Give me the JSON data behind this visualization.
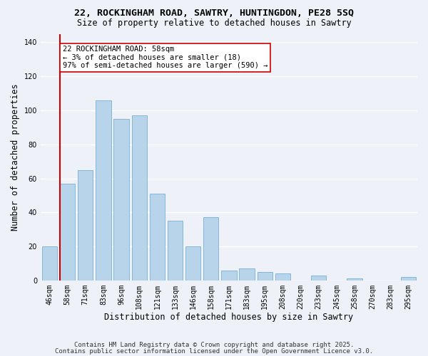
{
  "title1": "22, ROCKINGHAM ROAD, SAWTRY, HUNTINGDON, PE28 5SQ",
  "title2": "Size of property relative to detached houses in Sawtry",
  "xlabel": "Distribution of detached houses by size in Sawtry",
  "ylabel": "Number of detached properties",
  "bar_labels": [
    "46sqm",
    "58sqm",
    "71sqm",
    "83sqm",
    "96sqm",
    "108sqm",
    "121sqm",
    "133sqm",
    "146sqm",
    "158sqm",
    "171sqm",
    "183sqm",
    "195sqm",
    "208sqm",
    "220sqm",
    "233sqm",
    "245sqm",
    "258sqm",
    "270sqm",
    "283sqm",
    "295sqm"
  ],
  "bar_values": [
    20,
    57,
    65,
    106,
    95,
    97,
    51,
    35,
    20,
    37,
    6,
    7,
    5,
    4,
    0,
    3,
    0,
    1,
    0,
    0,
    2
  ],
  "bar_color": "#b8d4ea",
  "bar_edge_color": "#7ab0d4",
  "marker_bar_index": 1,
  "marker_line_color": "#cc0000",
  "annotation_line1": "22 ROCKINGHAM ROAD: 58sqm",
  "annotation_line2": "← 3% of detached houses are smaller (18)",
  "annotation_line3": "97% of semi-detached houses are larger (590) →",
  "annotation_box_color": "white",
  "annotation_box_edge_color": "#cc0000",
  "ylim_max": 145,
  "yticks": [
    0,
    20,
    40,
    60,
    80,
    100,
    120,
    140
  ],
  "background_color": "#eef2f8",
  "grid_color": "#ffffff",
  "footer1": "Contains HM Land Registry data © Crown copyright and database right 2025.",
  "footer2": "Contains public sector information licensed under the Open Government Licence v3.0.",
  "title1_fontsize": 9.5,
  "title2_fontsize": 8.5,
  "tick_fontsize": 7,
  "axis_label_fontsize": 8.5,
  "footer_fontsize": 6.5,
  "annotation_fontsize": 7.5
}
